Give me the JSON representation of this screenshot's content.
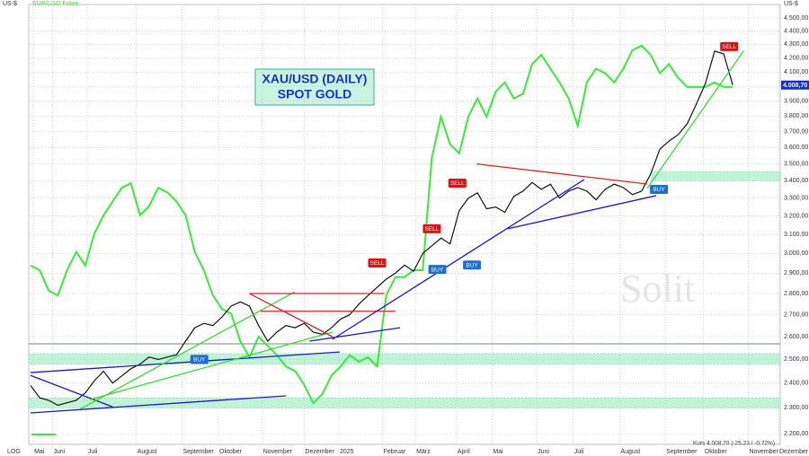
{
  "chart_data": {
    "type": "line",
    "title": [
      "XAU/USD (DAILY)",
      "SPOT GOLD"
    ],
    "y_unit": "US-$",
    "scale_label": "LOG",
    "watermark": "Solit",
    "quote": "Kurs 4.008,70 (-25,23 / -0,72%)",
    "last_label": "4.008,70",
    "log_scale": true,
    "grid": true,
    "x": [
      0,
      1,
      2,
      3,
      4,
      5,
      6,
      7,
      8,
      9,
      10,
      11,
      12,
      13,
      14,
      15,
      16,
      17,
      18,
      19,
      20,
      21,
      22,
      23,
      24,
      25,
      26,
      27,
      28,
      29,
      30,
      31,
      32,
      33,
      34,
      35,
      36,
      37,
      38,
      39,
      40,
      41,
      42,
      43,
      44,
      45,
      46,
      47,
      48,
      49,
      50,
      51,
      52,
      53,
      54,
      55,
      56,
      57,
      58,
      59,
      60,
      61,
      62,
      63,
      64,
      65,
      66,
      67,
      68,
      69,
      70,
      71,
      72,
      73,
      74,
      75,
      76,
      77
    ],
    "xlim": [
      -0.2,
      82.2
    ],
    "xticks": [
      {
        "value": 0.3,
        "label": "Mai"
      },
      {
        "value": 2.4,
        "label": "Juni"
      },
      {
        "value": 6.2,
        "label": "Juli"
      },
      {
        "value": 11.6,
        "label": "August"
      },
      {
        "value": 16.6,
        "label": "September"
      },
      {
        "value": 20.6,
        "label": "Oktober"
      },
      {
        "value": 25.4,
        "label": "November"
      },
      {
        "value": 30,
        "label": "Dezember"
      },
      {
        "value": 33.8,
        "label": "2025"
      },
      {
        "value": 38.6,
        "label": "Februar"
      },
      {
        "value": 42.2,
        "label": "März"
      },
      {
        "value": 46.7,
        "label": "April"
      },
      {
        "value": 50.6,
        "label": "Mai"
      },
      {
        "value": 55.5,
        "label": "Juni"
      },
      {
        "value": 59.5,
        "label": "Juli"
      },
      {
        "value": 64.6,
        "label": "August"
      },
      {
        "value": 69.6,
        "label": "September"
      },
      {
        "value": 73.8,
        "label": "Oktober"
      },
      {
        "value": 78.7,
        "label": "November"
      },
      {
        "value": 82,
        "label": "Dezember"
      }
    ],
    "ylim": [
      2160,
      4605
    ],
    "yticks": [
      {
        "value": 2200,
        "label": "2.200,00"
      },
      {
        "value": 2300,
        "label": "2.300,00"
      },
      {
        "value": 2400,
        "label": "2.400,00"
      },
      {
        "value": 2500,
        "label": "2.500,00"
      },
      {
        "value": 2600,
        "label": "2.600,00"
      },
      {
        "value": 2700,
        "label": "2.700,00"
      },
      {
        "value": 2800,
        "label": "2.800,00"
      },
      {
        "value": 2900,
        "label": "2.900,00"
      },
      {
        "value": 3000,
        "label": "3.000,00"
      },
      {
        "value": 3100,
        "label": "3.100,00"
      },
      {
        "value": 3200,
        "label": "3.200,00"
      },
      {
        "value": 3300,
        "label": "3.300,00"
      },
      {
        "value": 3400,
        "label": "3.400,00"
      },
      {
        "value": 3500,
        "label": "3.500,00"
      },
      {
        "value": 3600,
        "label": "3.600,00"
      },
      {
        "value": 3700,
        "label": "3.700,00"
      },
      {
        "value": 3800,
        "label": "3.800,00"
      },
      {
        "value": 3900,
        "label": "3.900,00"
      },
      {
        "value": 4000,
        "label": "4.000,00"
      },
      {
        "value": 4100,
        "label": "4.100,00"
      },
      {
        "value": 4200,
        "label": "4.200,00"
      },
      {
        "value": 4300,
        "label": "4.300,00"
      },
      {
        "value": 4400,
        "label": "4.400,00"
      },
      {
        "value": 4500,
        "label": "4.500,00"
      }
    ],
    "y2lim": [
      1.004,
      1.196
    ],
    "series": [
      {
        "name": "XAU/USD",
        "color": "#111111",
        "values": [
          2390,
          2340,
          2330,
          2310,
          2320,
          2330,
          2360,
          2410,
          2450,
          2400,
          2430,
          2460,
          2480,
          2510,
          2500,
          2510,
          2520,
          2580,
          2640,
          2660,
          2650,
          2690,
          2740,
          2760,
          2740,
          2650,
          2580,
          2620,
          2650,
          2640,
          2660,
          2620,
          2610,
          2640,
          2680,
          2700,
          2750,
          2790,
          2830,
          2870,
          2900,
          2940,
          2910,
          3000,
          3040,
          3080,
          3050,
          3230,
          3300,
          3330,
          3240,
          3250,
          3220,
          3310,
          3340,
          3390,
          3350,
          3380,
          3300,
          3340,
          3360,
          3340,
          3290,
          3350,
          3380,
          3360,
          3320,
          3340,
          3440,
          3590,
          3640,
          3680,
          3750,
          3880,
          4020,
          4250,
          4230,
          4008.7
        ]
      },
      {
        "name": "EUR/USD Forex",
        "color": "#33ee33",
        "axis": "y2",
        "values": [
          1.082,
          1.08,
          1.071,
          1.069,
          1.08,
          1.088,
          1.082,
          1.096,
          1.104,
          1.11,
          1.116,
          1.118,
          1.104,
          1.108,
          1.116,
          1.114,
          1.11,
          1.104,
          1.088,
          1.08,
          1.069,
          1.063,
          1.061,
          1.049,
          1.042,
          1.051,
          1.047,
          1.043,
          1.038,
          1.036,
          1.03,
          1.022,
          1.026,
          1.034,
          1.038,
          1.043,
          1.04,
          1.042,
          1.038,
          1.069,
          1.077,
          1.077,
          1.08,
          1.08,
          1.129,
          1.147,
          1.135,
          1.131,
          1.147,
          1.155,
          1.147,
          1.158,
          1.162,
          1.155,
          1.157,
          1.17,
          1.174,
          1.168,
          1.162,
          1.155,
          1.143,
          1.162,
          1.168,
          1.166,
          1.162,
          1.168,
          1.176,
          1.178,
          1.174,
          1.166,
          1.17,
          1.164,
          1.16,
          1.16,
          1.16,
          1.162,
          1.16,
          1.16
        ]
      }
    ],
    "zones": [
      {
        "from": 3400,
        "to": 3455,
        "start": 68,
        "color": "#bff5d6"
      },
      {
        "from": 2480,
        "to": 2525,
        "start": -0.2,
        "color": "#bff5d6"
      },
      {
        "from": 2300,
        "to": 2340,
        "start": -0.2,
        "color": "#bff5d6"
      }
    ],
    "levels": [
      {
        "value": 2568,
        "color": "#555555"
      }
    ],
    "trendlines": [
      {
        "color": "#1a1acc",
        "x": [
          0,
          33.9
        ],
        "y": [
          2444,
          2532
        ]
      },
      {
        "color": "#1a1acc",
        "x": [
          0,
          28
        ],
        "y": [
          2280,
          2348
        ]
      },
      {
        "color": "#1a1acc",
        "x": [
          0,
          9
        ],
        "y": [
          2432,
          2304
        ]
      },
      {
        "color": "#33dd33",
        "x": [
          5.5,
          29
        ],
        "y": [
          2296,
          2809
        ]
      },
      {
        "color": "#33dd33",
        "x": [
          6.5,
          33.1
        ],
        "y": [
          2333,
          2620
        ]
      },
      {
        "color": "#e02020",
        "x": [
          24,
          38.8
        ],
        "y": [
          2800,
          2800
        ]
      },
      {
        "color": "#e02020",
        "x": [
          25.2,
          40
        ],
        "y": [
          2716,
          2716
        ]
      },
      {
        "color": "#e02020",
        "x": [
          24,
          33.1
        ],
        "y": [
          2800,
          2600
        ]
      },
      {
        "color": "#1a1acc",
        "x": [
          30.6,
          40.5
        ],
        "y": [
          2580,
          2640
        ]
      },
      {
        "color": "#1a1acc",
        "x": [
          33.1,
          60.7
        ],
        "y": [
          2588,
          3407
        ]
      },
      {
        "color": "#e02020",
        "x": [
          48.9,
          67.6
        ],
        "y": [
          3500,
          3381
        ]
      },
      {
        "color": "#1a1acc",
        "x": [
          52.3,
          68.6
        ],
        "y": [
          3130,
          3314
        ]
      },
      {
        "color": "#33dd33",
        "x": [
          67.6,
          78.2
        ],
        "y": [
          3355,
          4253
        ]
      }
    ],
    "signals": [
      {
        "label": "BUY",
        "color": "#1a6fd6",
        "x": 18.5,
        "y": 2500
      },
      {
        "label": "SELL",
        "color": "#e01010",
        "x": 38,
        "y": 2951
      },
      {
        "label": "SELL",
        "color": "#e01010",
        "x": 44,
        "y": 3130
      },
      {
        "label": "BUY",
        "color": "#1a6fd6",
        "x": 44.6,
        "y": 2919
      },
      {
        "label": "SELL",
        "color": "#e01010",
        "x": 46.8,
        "y": 3386
      },
      {
        "label": "BUY",
        "color": "#1a6fd6",
        "x": 48.4,
        "y": 2941
      },
      {
        "label": "BUY",
        "color": "#1a6fd6",
        "x": 68.9,
        "y": 3350
      },
      {
        "label": "SELL",
        "color": "#e01010",
        "x": 76.6,
        "y": 4283
      }
    ]
  }
}
